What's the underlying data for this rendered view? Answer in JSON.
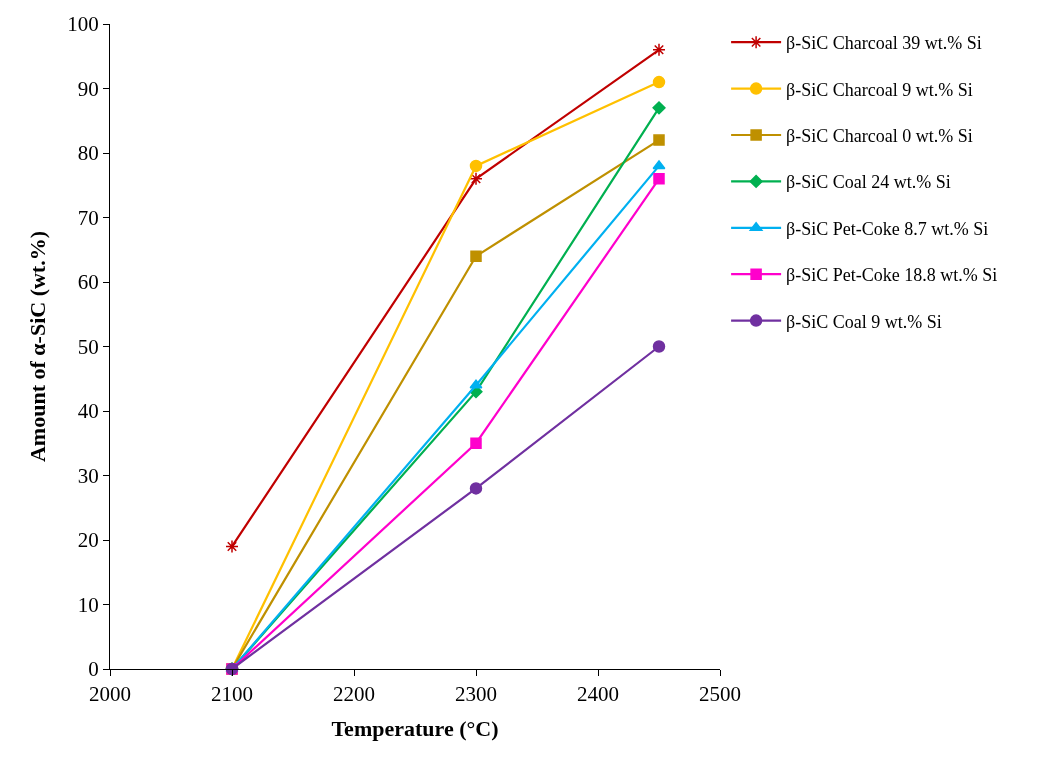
{
  "chart_data": {
    "type": "line",
    "xlabel": "Temperature (°C)",
    "ylabel": "Amount of α-SiC (wt.%)",
    "xlim": [
      2000,
      2500
    ],
    "xticks": [
      2000,
      2100,
      2200,
      2300,
      2400,
      2500
    ],
    "ylim": [
      0,
      100
    ],
    "yticks": [
      0,
      10,
      20,
      30,
      40,
      50,
      60,
      70,
      80,
      90,
      100
    ],
    "x": [
      2100,
      2300,
      2450
    ],
    "grid": false,
    "legend": "right",
    "line_style": "solid",
    "series": [
      {
        "name": "β-SiC Charcoal 39 wt.% Si",
        "color": "#c00000",
        "marker": "cross",
        "values": [
          19,
          76,
          96
        ]
      },
      {
        "name": "β-SiC Charcoal 9 wt.% Si",
        "color": "#ffc000",
        "marker": "circle",
        "values": [
          0,
          78,
          91
        ]
      },
      {
        "name": "β-SiC Charcoal 0 wt.% Si",
        "color": "#bf9000",
        "marker": "square",
        "values": [
          0,
          64,
          82
        ]
      },
      {
        "name": "β-SiC Coal 24 wt.% Si",
        "color": "#00b050",
        "marker": "diamond",
        "values": [
          0,
          43,
          87
        ]
      },
      {
        "name": "β-SiC Pet-Coke 8.7 wt.% Si",
        "color": "#00b0f0",
        "marker": "triangle",
        "values": [
          0,
          44,
          78
        ]
      },
      {
        "name": "β-SiC Pet-Coke 18.8 wt.% Si",
        "color": "#ff00cc",
        "marker": "square",
        "values": [
          0,
          35,
          76
        ]
      },
      {
        "name": "β-SiC Coal 9 wt.% Si",
        "color": "#7030a0",
        "marker": "circle",
        "values": [
          0,
          28,
          50
        ]
      }
    ]
  }
}
